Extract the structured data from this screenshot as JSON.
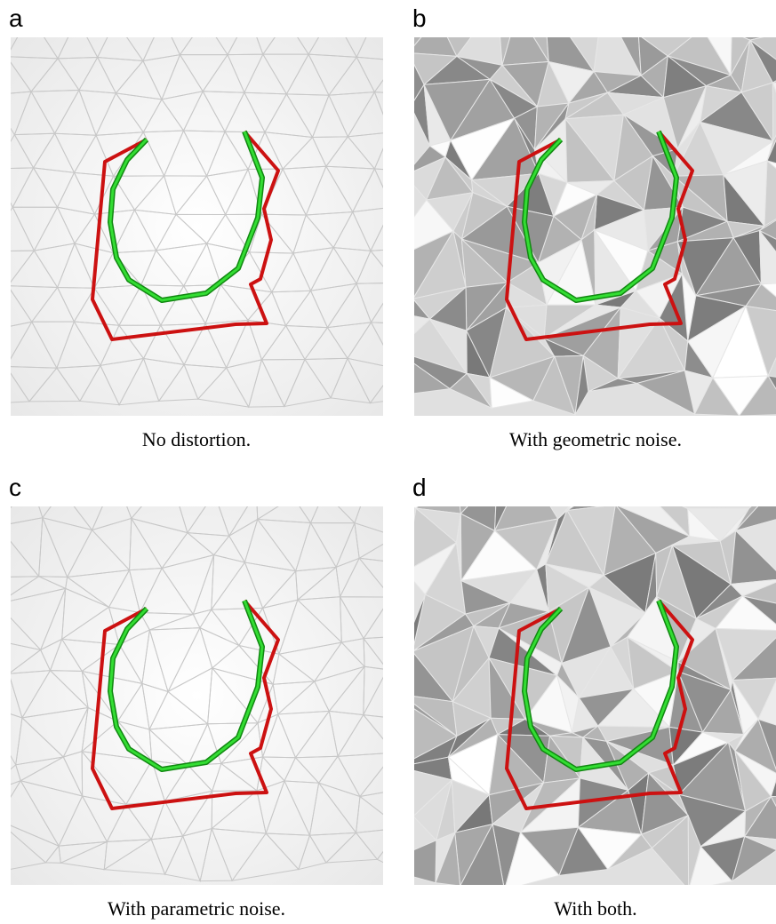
{
  "panels": [
    {
      "label": "a",
      "caption": "No distortion."
    },
    {
      "label": "b",
      "caption": "With geometric noise."
    },
    {
      "label": "c",
      "caption": "With parametric noise."
    },
    {
      "label": "d",
      "caption": "With both."
    }
  ]
}
